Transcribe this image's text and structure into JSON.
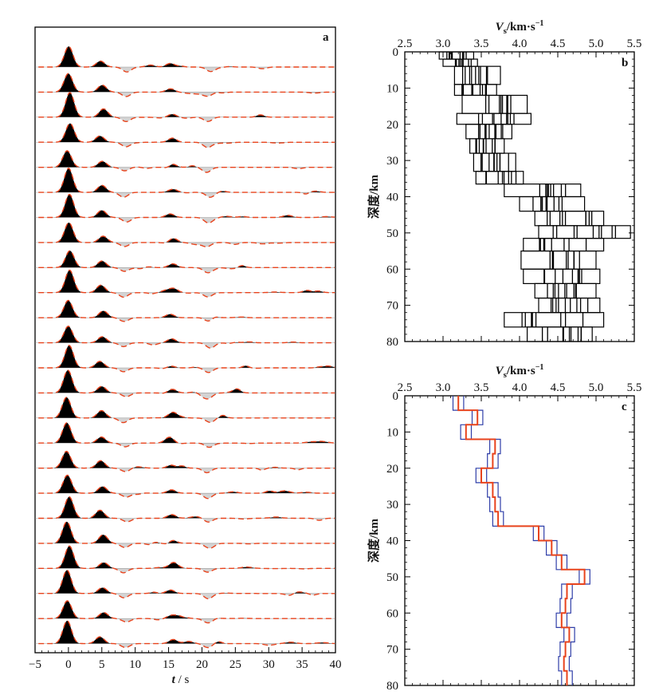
{
  "chart_data": [
    {
      "panel": "a",
      "type": "line",
      "panel_label": "a",
      "xlabel_var": "t",
      "xlabel_unit": "s",
      "xlim": [
        -5,
        40
      ],
      "xticks": [
        -5,
        0,
        5,
        10,
        15,
        20,
        25,
        30,
        35,
        40
      ],
      "grid": false,
      "trace_count": 24,
      "colors": {
        "observed_fill": "#000000",
        "negative_fill": "#d3d3d3",
        "synthetic_line": "#e8431c"
      },
      "pulses_common": [
        {
          "t": 0,
          "amp": 1.0
        },
        {
          "t": 5,
          "amp": 0.35
        },
        {
          "t": 8.5,
          "amp": -0.2
        },
        {
          "t": 15.5,
          "amp": 0.18
        },
        {
          "t": 21,
          "amp": -0.22
        }
      ],
      "series": [
        {
          "name": "observed",
          "style": "black fill positive, grey fill negative"
        },
        {
          "name": "synthetic",
          "style": "orange-red dashed"
        }
      ]
    },
    {
      "panel": "b",
      "type": "line",
      "panel_label": "b",
      "xlabel_var": "V",
      "xlabel_sub": "s",
      "xlabel_unit": "/km·s",
      "xlabel_sup": "−1",
      "ylabel": "深度/km",
      "xlim": [
        2.5,
        5.5
      ],
      "ylim": [
        0,
        80
      ],
      "xticks": [
        "2.5",
        "3.0",
        "3.5",
        "4.0",
        "4.5",
        "5.0",
        "5.5"
      ],
      "yticks": [
        0,
        10,
        20,
        30,
        40,
        50,
        60,
        70,
        80
      ],
      "grid": false,
      "description_type": "ensemble of step velocity models",
      "layers": [
        {
          "top": 0,
          "bottom": 2,
          "vmin": 2.95,
          "vmax": 3.4
        },
        {
          "top": 2,
          "bottom": 4,
          "vmin": 3.0,
          "vmax": 3.45
        },
        {
          "top": 4,
          "bottom": 9,
          "vmin": 3.15,
          "vmax": 3.75
        },
        {
          "top": 9,
          "bottom": 12,
          "vmin": 3.15,
          "vmax": 3.7
        },
        {
          "top": 12,
          "bottom": 17,
          "vmin": 3.25,
          "vmax": 4.1
        },
        {
          "top": 17,
          "bottom": 20,
          "vmin": 3.18,
          "vmax": 4.15
        },
        {
          "top": 20,
          "bottom": 24,
          "vmin": 3.3,
          "vmax": 3.9
        },
        {
          "top": 24,
          "bottom": 28,
          "vmin": 3.35,
          "vmax": 3.8
        },
        {
          "top": 28,
          "bottom": 33,
          "vmin": 3.4,
          "vmax": 3.95
        },
        {
          "top": 33,
          "bottom": 36.5,
          "vmin": 3.43,
          "vmax": 4.05
        },
        {
          "top": 36.5,
          "bottom": 40,
          "vmin": 3.8,
          "vmax": 4.8
        },
        {
          "top": 40,
          "bottom": 44,
          "vmin": 4.0,
          "vmax": 4.85
        },
        {
          "top": 44,
          "bottom": 48,
          "vmin": 4.2,
          "vmax": 5.1
        },
        {
          "top": 48,
          "bottom": 51.5,
          "vmin": 4.25,
          "vmax": 5.45
        },
        {
          "top": 51.5,
          "bottom": 55,
          "vmin": 4.05,
          "vmax": 5.1
        },
        {
          "top": 55,
          "bottom": 60,
          "vmin": 4.02,
          "vmax": 5.0
        },
        {
          "top": 60,
          "bottom": 64,
          "vmin": 4.05,
          "vmax": 5.05
        },
        {
          "top": 64,
          "bottom": 68,
          "vmin": 4.2,
          "vmax": 5.0
        },
        {
          "top": 68,
          "bottom": 72,
          "vmin": 4.25,
          "vmax": 5.05
        },
        {
          "top": 72,
          "bottom": 76,
          "vmin": 3.8,
          "vmax": 5.1
        },
        {
          "top": 76,
          "bottom": 80,
          "vmin": 4.1,
          "vmax": 4.95
        }
      ]
    },
    {
      "panel": "c",
      "type": "line",
      "panel_label": "c",
      "xlabel_var": "V",
      "xlabel_sub": "s",
      "xlabel_unit": "/km·s",
      "xlabel_sup": "−1",
      "ylabel": "深度/km",
      "xlim": [
        2.5,
        5.5
      ],
      "ylim": [
        0,
        80
      ],
      "xticks": [
        "2.5",
        "3.0",
        "3.5",
        "4.0",
        "4.5",
        "5.0",
        "5.5"
      ],
      "yticks": [
        0,
        10,
        20,
        30,
        40,
        50,
        60,
        70,
        80
      ],
      "grid": false,
      "colors": {
        "mean": "#e8431c",
        "bounds": "#2f3ea8"
      },
      "series": [
        {
          "name": "mean",
          "steps": [
            {
              "top": 0,
              "bottom": 4,
              "v": 3.2
            },
            {
              "top": 4,
              "bottom": 8,
              "v": 3.45
            },
            {
              "top": 8,
              "bottom": 12,
              "v": 3.3
            },
            {
              "top": 12,
              "bottom": 16,
              "v": 3.68
            },
            {
              "top": 16,
              "bottom": 20,
              "v": 3.65
            },
            {
              "top": 20,
              "bottom": 24,
              "v": 3.5
            },
            {
              "top": 24,
              "bottom": 28,
              "v": 3.65
            },
            {
              "top": 28,
              "bottom": 32,
              "v": 3.68
            },
            {
              "top": 32,
              "bottom": 36,
              "v": 3.72
            },
            {
              "top": 36,
              "bottom": 40,
              "v": 4.25
            },
            {
              "top": 40,
              "bottom": 44,
              "v": 4.42
            },
            {
              "top": 44,
              "bottom": 48,
              "v": 4.55
            },
            {
              "top": 48,
              "bottom": 52,
              "v": 4.85
            },
            {
              "top": 52,
              "bottom": 56,
              "v": 4.62
            },
            {
              "top": 56,
              "bottom": 60,
              "v": 4.6
            },
            {
              "top": 60,
              "bottom": 64,
              "v": 4.55
            },
            {
              "top": 64,
              "bottom": 68,
              "v": 4.65
            },
            {
              "top": 68,
              "bottom": 72,
              "v": 4.6
            },
            {
              "top": 72,
              "bottom": 76,
              "v": 4.58
            },
            {
              "top": 76,
              "bottom": 80,
              "v": 4.62
            }
          ]
        },
        {
          "name": "lower",
          "offset": -0.07
        },
        {
          "name": "upper",
          "offset": 0.07
        }
      ]
    }
  ]
}
